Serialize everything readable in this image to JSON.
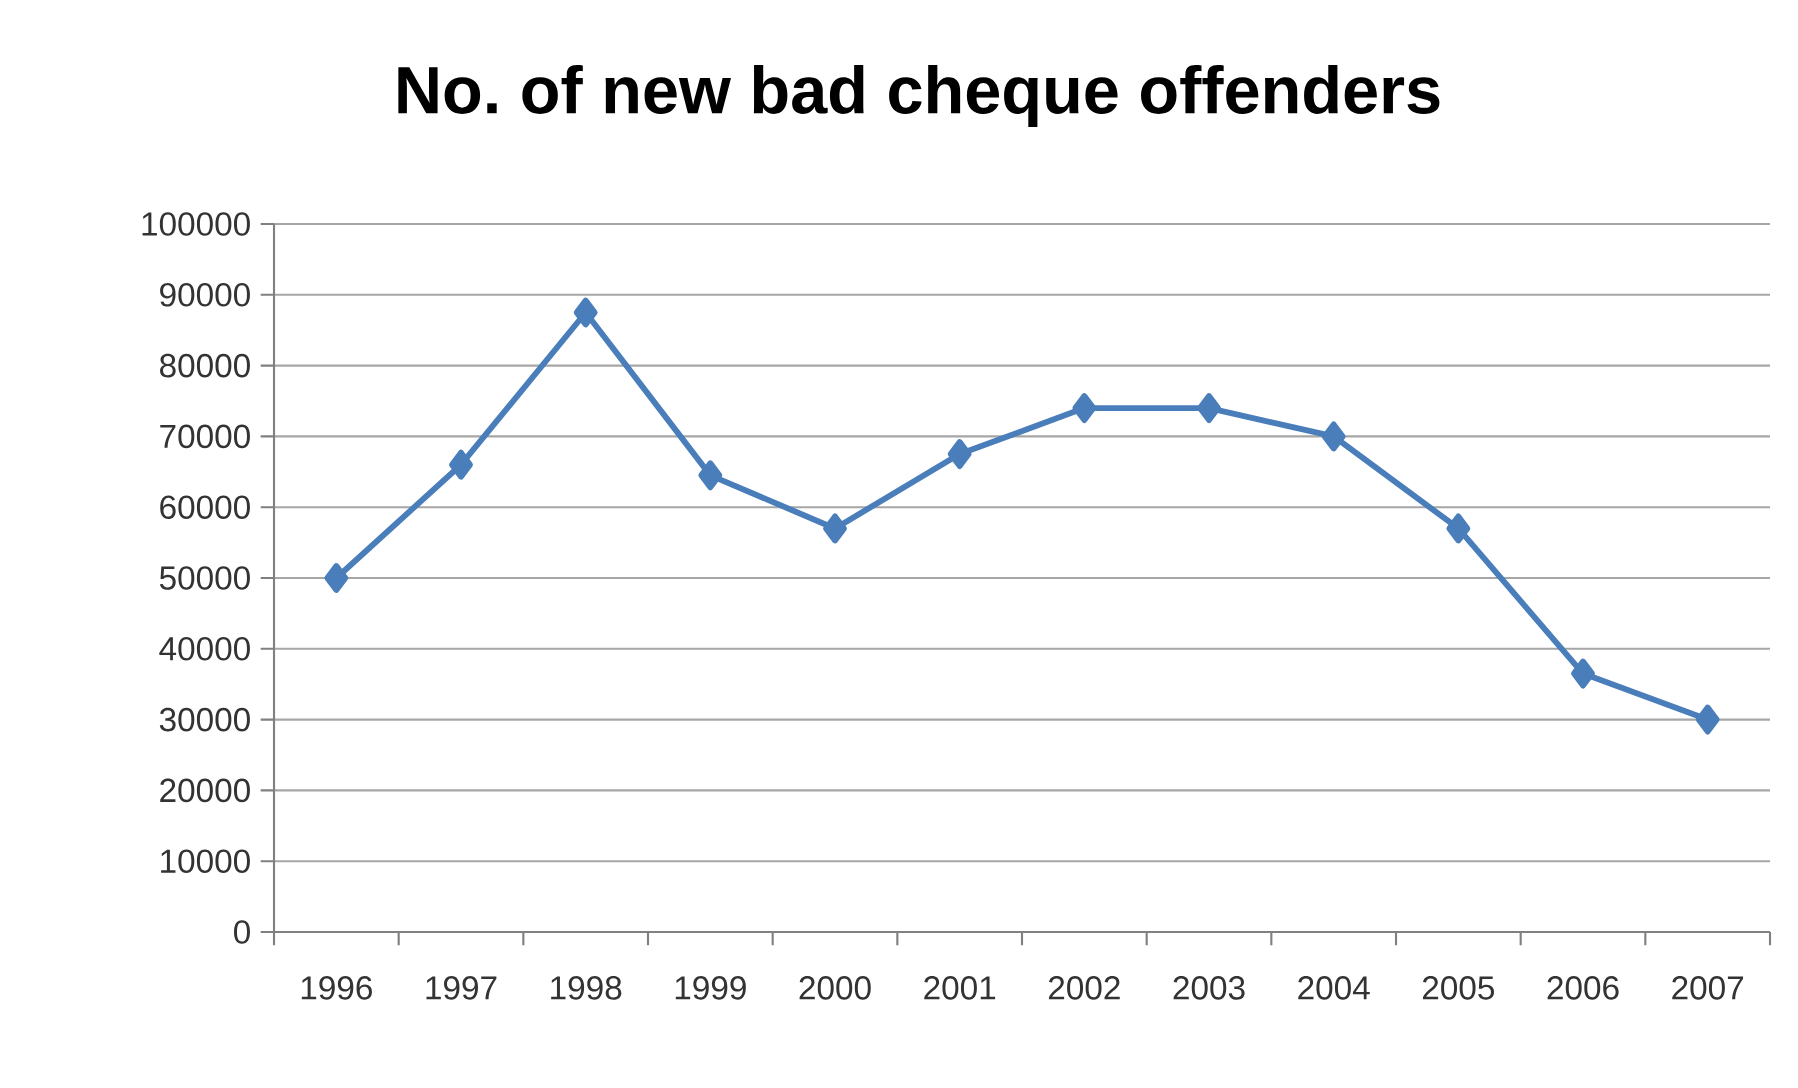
{
  "chart_data": {
    "type": "line",
    "title": "No. of new bad cheque offenders",
    "categories": [
      "1996",
      "1997",
      "1998",
      "1999",
      "2000",
      "2001",
      "2002",
      "2003",
      "2004",
      "2005",
      "2006",
      "2007"
    ],
    "values": [
      50000,
      66000,
      87500,
      64500,
      57000,
      67500,
      74000,
      74000,
      70000,
      57000,
      36500,
      30000
    ],
    "color": "#4a7ebb",
    "marker": "diamond",
    "line_style": "solid",
    "ylim": [
      0,
      100000
    ],
    "yticks": [
      0,
      10000,
      20000,
      30000,
      40000,
      50000,
      60000,
      70000,
      80000,
      90000,
      100000
    ],
    "grid": "y"
  }
}
